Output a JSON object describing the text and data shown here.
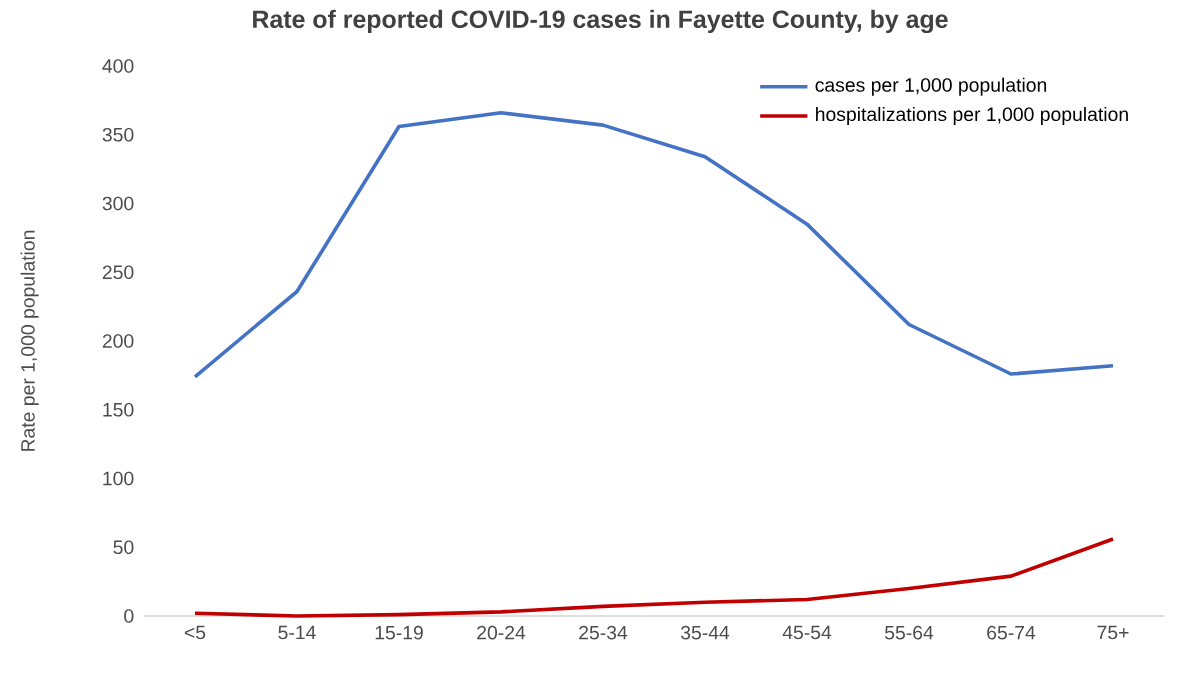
{
  "chart_data": {
    "type": "line",
    "title": "Rate of reported COVID-19 cases in Fayette County, by age",
    "ylabel": "Rate per 1,000 population",
    "categories": [
      "<5",
      "5-14",
      "15-19",
      "20-24",
      "25-34",
      "35-44",
      "45-54",
      "55-64",
      "65-74",
      "75+"
    ],
    "series": [
      {
        "name": "cases per 1,000 population",
        "color": "#4472c4",
        "values": [
          174,
          236,
          356,
          366,
          357,
          334,
          285,
          212,
          176,
          182
        ]
      },
      {
        "name": "hospitalizations per 1,000 population",
        "color": "#c00000",
        "values": [
          2,
          0,
          1,
          3,
          7,
          10,
          12,
          20,
          29,
          56
        ]
      }
    ],
    "ylim": [
      0,
      400
    ],
    "yticks": [
      0,
      50,
      100,
      150,
      200,
      250,
      300,
      350,
      400
    ],
    "grid": false,
    "legend": "top right",
    "marker": "none",
    "line_style": "solid"
  }
}
